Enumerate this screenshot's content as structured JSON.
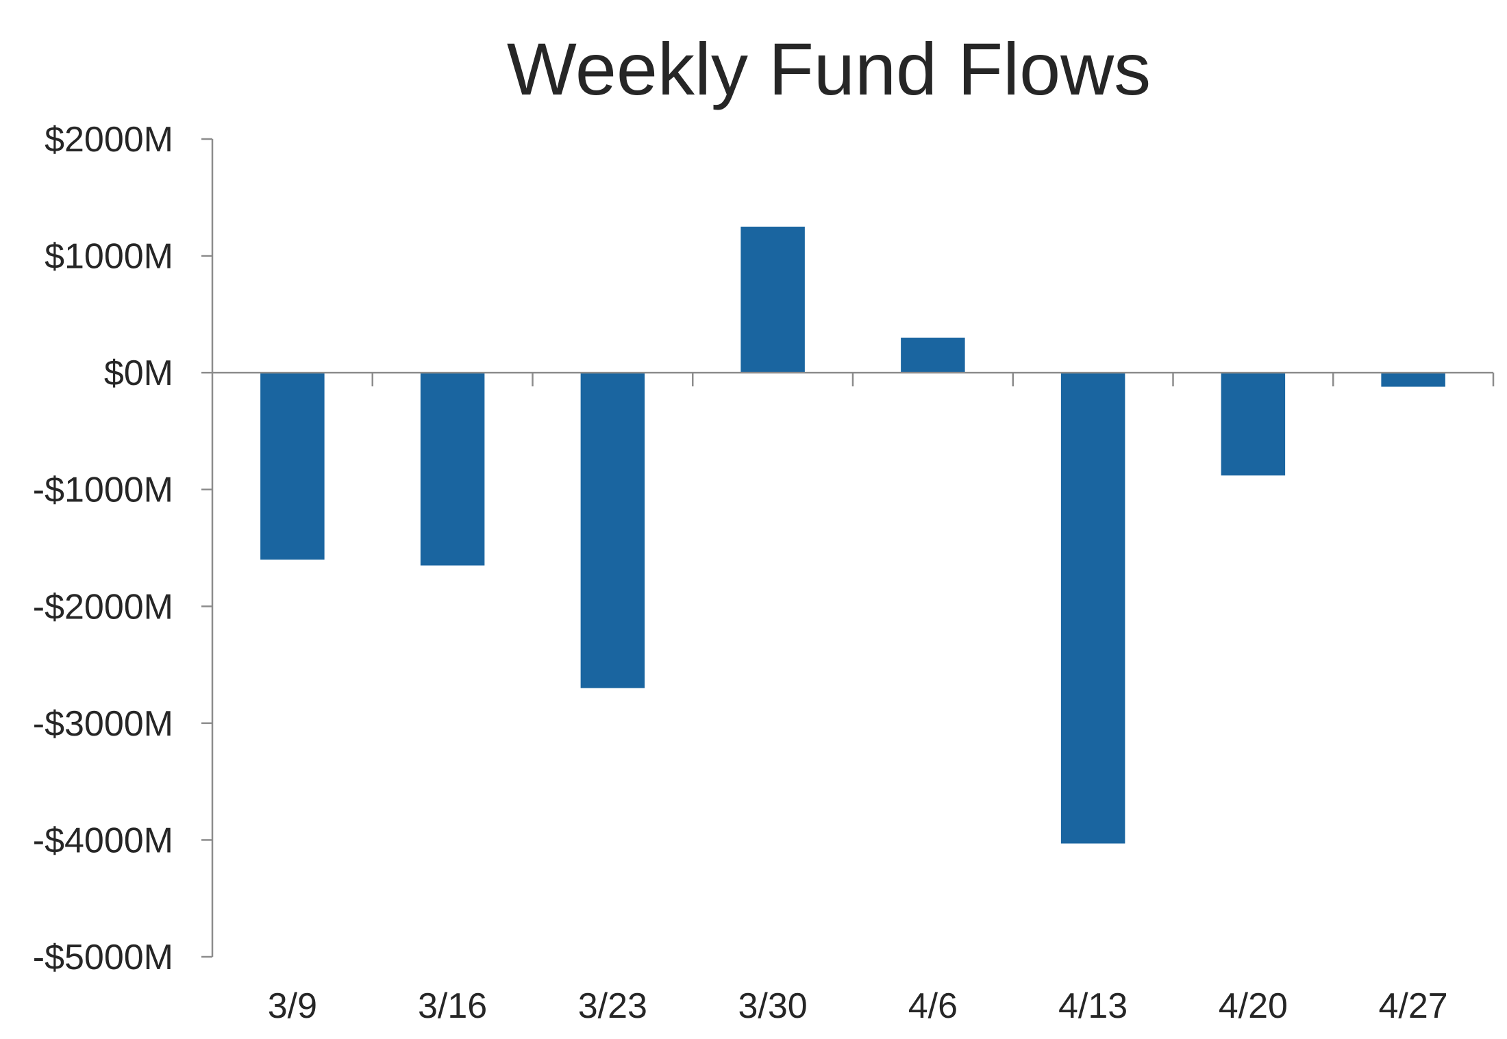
{
  "chart_data": {
    "type": "bar",
    "title": "Weekly Fund Flows",
    "xlabel": "",
    "ylabel": "",
    "categories": [
      "3/9",
      "3/16",
      "3/23",
      "3/30",
      "4/6",
      "4/13",
      "4/20",
      "4/27"
    ],
    "values": [
      -1600,
      -1650,
      -2700,
      1250,
      300,
      -4030,
      -880,
      -120
    ],
    "ylim": [
      -5000,
      2000
    ],
    "y_ticks": [
      2000,
      1000,
      0,
      -1000,
      -2000,
      -3000,
      -4000,
      -5000
    ],
    "y_tick_labels": [
      "$2000M",
      "$1000M",
      "$0M",
      "-$1000M",
      "-$2000M",
      "-$3000M",
      "-$4000M",
      "-$5000M"
    ],
    "unit": "$M",
    "grid": false,
    "legend": "none",
    "colors": {
      "bar": "#1a65a0",
      "axis": "#8c8c8c",
      "text": "#262626"
    }
  }
}
